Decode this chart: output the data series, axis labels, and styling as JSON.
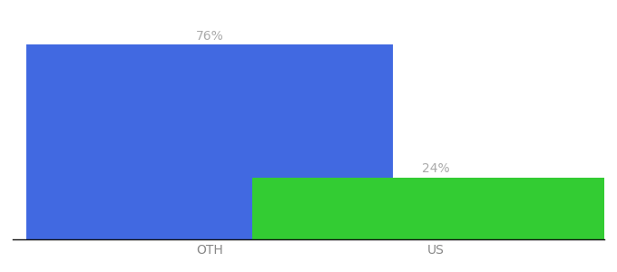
{
  "categories": [
    "OTH",
    "US"
  ],
  "values": [
    76,
    24
  ],
  "bar_colors": [
    "#4169e1",
    "#33cc33"
  ],
  "label_texts": [
    "76%",
    "24%"
  ],
  "label_color": "#aaaaaa",
  "background_color": "#ffffff",
  "ylim": [
    0,
    85
  ],
  "bar_width": 0.65,
  "bar_positions": [
    0.3,
    0.7
  ],
  "xlabel_fontsize": 10,
  "label_fontsize": 10,
  "axis_line_color": "#111111",
  "tick_color": "#888888"
}
